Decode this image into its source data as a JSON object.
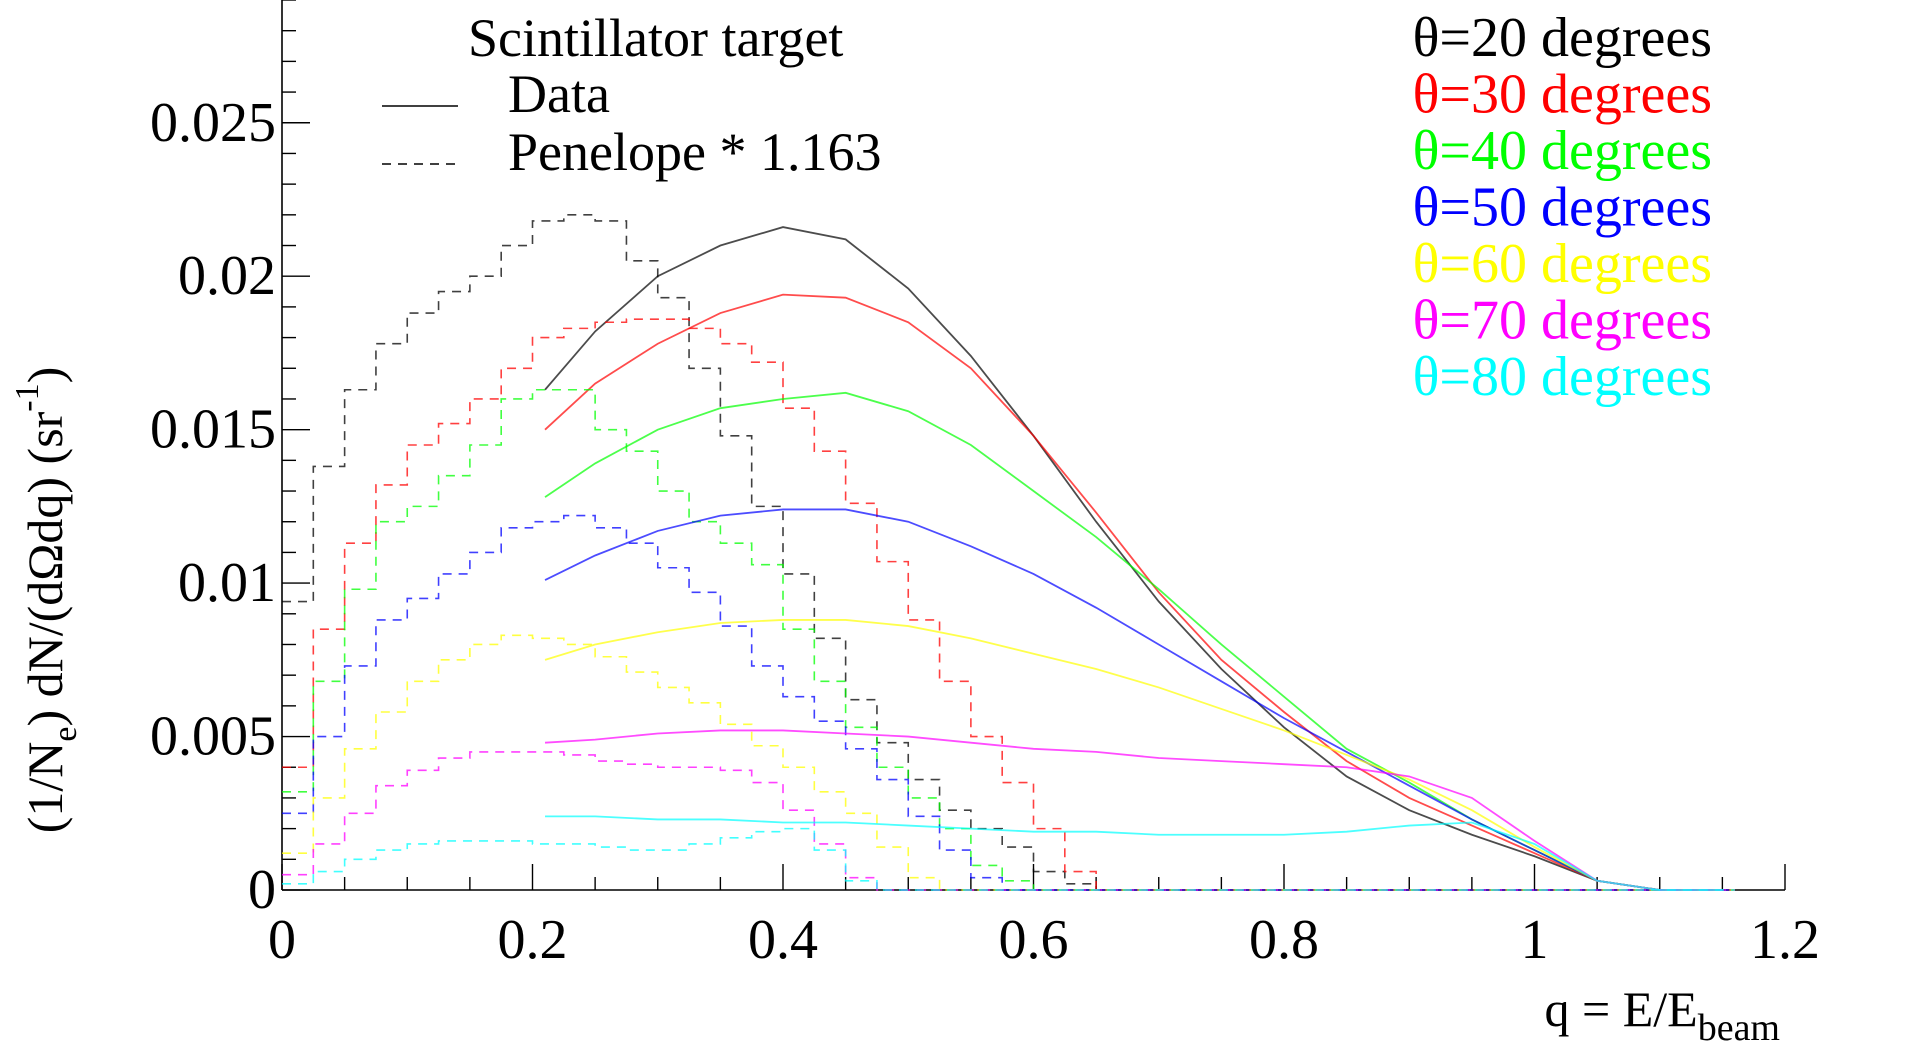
{
  "chart_data": {
    "type": "line",
    "title": "",
    "xlabel": "q = E/E",
    "xlabel_sub": "beam",
    "ylabel": "(1/N",
    "ylabel_sub": "e",
    "ylabel_rest": ") dN/(dΩdq) (sr",
    "ylabel_sup": "-1",
    "ylabel_end": ")",
    "xlim": [
      0,
      1.2
    ],
    "ylim": [
      0,
      0.029
    ],
    "xticks": [
      0,
      0.2,
      0.4,
      0.6,
      0.8,
      1,
      1.2
    ],
    "xtick_labels": [
      "0",
      "0.2",
      "0.4",
      "0.6",
      "0.8",
      "1",
      "1.2"
    ],
    "yticks": [
      0,
      0.005,
      0.01,
      0.015,
      0.02,
      0.025
    ],
    "ytick_labels": [
      "0",
      "0.005",
      "0.01",
      "0.015",
      "0.02",
      "0.025"
    ],
    "grid": false,
    "legend": {
      "title": "Scintillator target",
      "entries": [
        {
          "label": "Data",
          "style": "solid"
        },
        {
          "label": "Penelope * 1.163",
          "style": "dashed"
        }
      ]
    },
    "series": [
      {
        "name": "θ=20 degrees",
        "color": "#000000",
        "data_x": [
          0.21,
          0.25,
          0.3,
          0.35,
          0.4,
          0.45,
          0.5,
          0.55,
          0.6,
          0.65,
          0.7,
          0.75,
          0.8,
          0.85,
          0.9,
          0.95,
          1.0,
          1.05,
          1.1,
          1.15
        ],
        "data_y": [
          0.0163,
          0.0182,
          0.02,
          0.021,
          0.0216,
          0.0212,
          0.0196,
          0.0174,
          0.0148,
          0.012,
          0.0094,
          0.0072,
          0.0053,
          0.0037,
          0.0026,
          0.0018,
          0.0011,
          0.0003,
          0.0,
          0.0
        ],
        "penelope_y": [
          0.0094,
          0.0138,
          0.0163,
          0.0178,
          0.0188,
          0.0195,
          0.02,
          0.021,
          0.0218,
          0.022,
          0.0218,
          0.0205,
          0.0193,
          0.017,
          0.0148,
          0.0125,
          0.0103,
          0.0082,
          0.0062,
          0.0048,
          0.0036,
          0.0026,
          0.002,
          0.0014,
          0.0006,
          0.0002,
          0.0
        ]
      },
      {
        "name": "θ=30 degrees",
        "color": "#ff0000",
        "data_x": [
          0.21,
          0.25,
          0.3,
          0.35,
          0.4,
          0.45,
          0.5,
          0.55,
          0.6,
          0.65,
          0.7,
          0.75,
          0.8,
          0.85,
          0.9,
          0.95,
          1.0,
          1.05,
          1.1,
          1.15
        ],
        "data_y": [
          0.015,
          0.0165,
          0.0178,
          0.0188,
          0.0194,
          0.0193,
          0.0185,
          0.017,
          0.0148,
          0.0123,
          0.0097,
          0.0075,
          0.0058,
          0.0042,
          0.003,
          0.0021,
          0.0012,
          0.0003,
          0.0,
          0.0
        ],
        "penelope_y": [
          0.004,
          0.0085,
          0.0113,
          0.0132,
          0.0145,
          0.0152,
          0.016,
          0.017,
          0.018,
          0.0183,
          0.0185,
          0.0186,
          0.0186,
          0.0183,
          0.0178,
          0.0172,
          0.0157,
          0.0143,
          0.0126,
          0.0107,
          0.0088,
          0.0068,
          0.005,
          0.0035,
          0.002,
          0.0006,
          0.0
        ]
      },
      {
        "name": "θ=40 degrees",
        "color": "#00ff00",
        "data_x": [
          0.21,
          0.25,
          0.3,
          0.35,
          0.4,
          0.45,
          0.5,
          0.55,
          0.6,
          0.65,
          0.7,
          0.75,
          0.8,
          0.85,
          0.9,
          0.95,
          1.0,
          1.05,
          1.1,
          1.15
        ],
        "data_y": [
          0.0128,
          0.0139,
          0.015,
          0.0157,
          0.016,
          0.0162,
          0.0156,
          0.0145,
          0.013,
          0.0115,
          0.0098,
          0.008,
          0.0063,
          0.0046,
          0.0035,
          0.0023,
          0.0013,
          0.0003,
          0.0,
          0.0
        ],
        "penelope_y": [
          0.0032,
          0.0068,
          0.0098,
          0.012,
          0.0125,
          0.0135,
          0.0145,
          0.016,
          0.0163,
          0.0163,
          0.015,
          0.0143,
          0.013,
          0.012,
          0.0113,
          0.0106,
          0.0085,
          0.0068,
          0.0053,
          0.004,
          0.003,
          0.002,
          0.0008,
          0.0003,
          0.0
        ]
      },
      {
        "name": "θ=50 degrees",
        "color": "#0000ff",
        "data_x": [
          0.21,
          0.25,
          0.3,
          0.35,
          0.4,
          0.45,
          0.5,
          0.55,
          0.6,
          0.65,
          0.7,
          0.75,
          0.8,
          0.85,
          0.9,
          0.95,
          1.0,
          1.05,
          1.1,
          1.15
        ],
        "data_y": [
          0.0101,
          0.0109,
          0.0117,
          0.0122,
          0.0124,
          0.0124,
          0.012,
          0.0112,
          0.0103,
          0.0092,
          0.008,
          0.0068,
          0.0056,
          0.0045,
          0.0034,
          0.0023,
          0.0013,
          0.0003,
          0.0,
          0.0
        ],
        "penelope_y": [
          0.0025,
          0.005,
          0.0073,
          0.0088,
          0.0095,
          0.0103,
          0.011,
          0.0118,
          0.012,
          0.0122,
          0.0118,
          0.0113,
          0.0105,
          0.0097,
          0.0086,
          0.0073,
          0.0063,
          0.0055,
          0.0046,
          0.0036,
          0.0024,
          0.0013,
          0.0004,
          0.0
        ]
      },
      {
        "name": "θ=60 degrees",
        "color": "#ffff00",
        "data_x": [
          0.21,
          0.25,
          0.3,
          0.35,
          0.4,
          0.45,
          0.5,
          0.55,
          0.6,
          0.65,
          0.7,
          0.75,
          0.8,
          0.85,
          0.9,
          0.95,
          1.0,
          1.05,
          1.1,
          1.15
        ],
        "data_y": [
          0.0075,
          0.008,
          0.0084,
          0.0087,
          0.0088,
          0.0088,
          0.0086,
          0.0082,
          0.0077,
          0.0072,
          0.0066,
          0.0059,
          0.0052,
          0.0044,
          0.0036,
          0.0026,
          0.0014,
          0.0003,
          0.0,
          0.0
        ],
        "penelope_y": [
          0.0012,
          0.003,
          0.0046,
          0.0058,
          0.0068,
          0.0075,
          0.008,
          0.0083,
          0.0082,
          0.008,
          0.0076,
          0.0071,
          0.0066,
          0.0061,
          0.0054,
          0.0047,
          0.004,
          0.0032,
          0.0025,
          0.0014,
          0.0004,
          0.0
        ]
      },
      {
        "name": "θ=70 degrees",
        "color": "#ff00ff",
        "data_x": [
          0.21,
          0.25,
          0.3,
          0.35,
          0.4,
          0.45,
          0.5,
          0.55,
          0.6,
          0.65,
          0.7,
          0.75,
          0.8,
          0.85,
          0.9,
          0.95,
          1.0,
          1.05,
          1.1,
          1.15
        ],
        "data_y": [
          0.0048,
          0.0049,
          0.0051,
          0.0052,
          0.0052,
          0.0051,
          0.005,
          0.0048,
          0.0046,
          0.0045,
          0.0043,
          0.0042,
          0.0041,
          0.004,
          0.0037,
          0.003,
          0.0016,
          0.0003,
          0.0,
          0.0
        ],
        "penelope_y": [
          0.0005,
          0.0015,
          0.0025,
          0.0034,
          0.0039,
          0.0043,
          0.0045,
          0.0045,
          0.0045,
          0.0044,
          0.0042,
          0.0041,
          0.004,
          0.004,
          0.0039,
          0.0035,
          0.0026,
          0.0015,
          0.0004,
          0.0
        ]
      },
      {
        "name": "θ=80 degrees",
        "color": "#00ffff",
        "data_x": [
          0.21,
          0.25,
          0.3,
          0.35,
          0.4,
          0.45,
          0.5,
          0.55,
          0.6,
          0.65,
          0.7,
          0.75,
          0.8,
          0.85,
          0.9,
          0.95,
          1.0,
          1.05,
          1.1,
          1.15
        ],
        "data_y": [
          0.0024,
          0.0024,
          0.0023,
          0.0023,
          0.0022,
          0.0022,
          0.0021,
          0.002,
          0.0019,
          0.0019,
          0.0018,
          0.0018,
          0.0018,
          0.0019,
          0.0021,
          0.0022,
          0.0015,
          0.0003,
          0.0,
          0.0
        ],
        "penelope_y": [
          0.0002,
          0.0006,
          0.001,
          0.0013,
          0.0015,
          0.0016,
          0.0016,
          0.0016,
          0.0015,
          0.0015,
          0.0014,
          0.0013,
          0.0013,
          0.0015,
          0.0017,
          0.0019,
          0.002,
          0.0013,
          0.0003,
          0.0
        ]
      }
    ]
  }
}
